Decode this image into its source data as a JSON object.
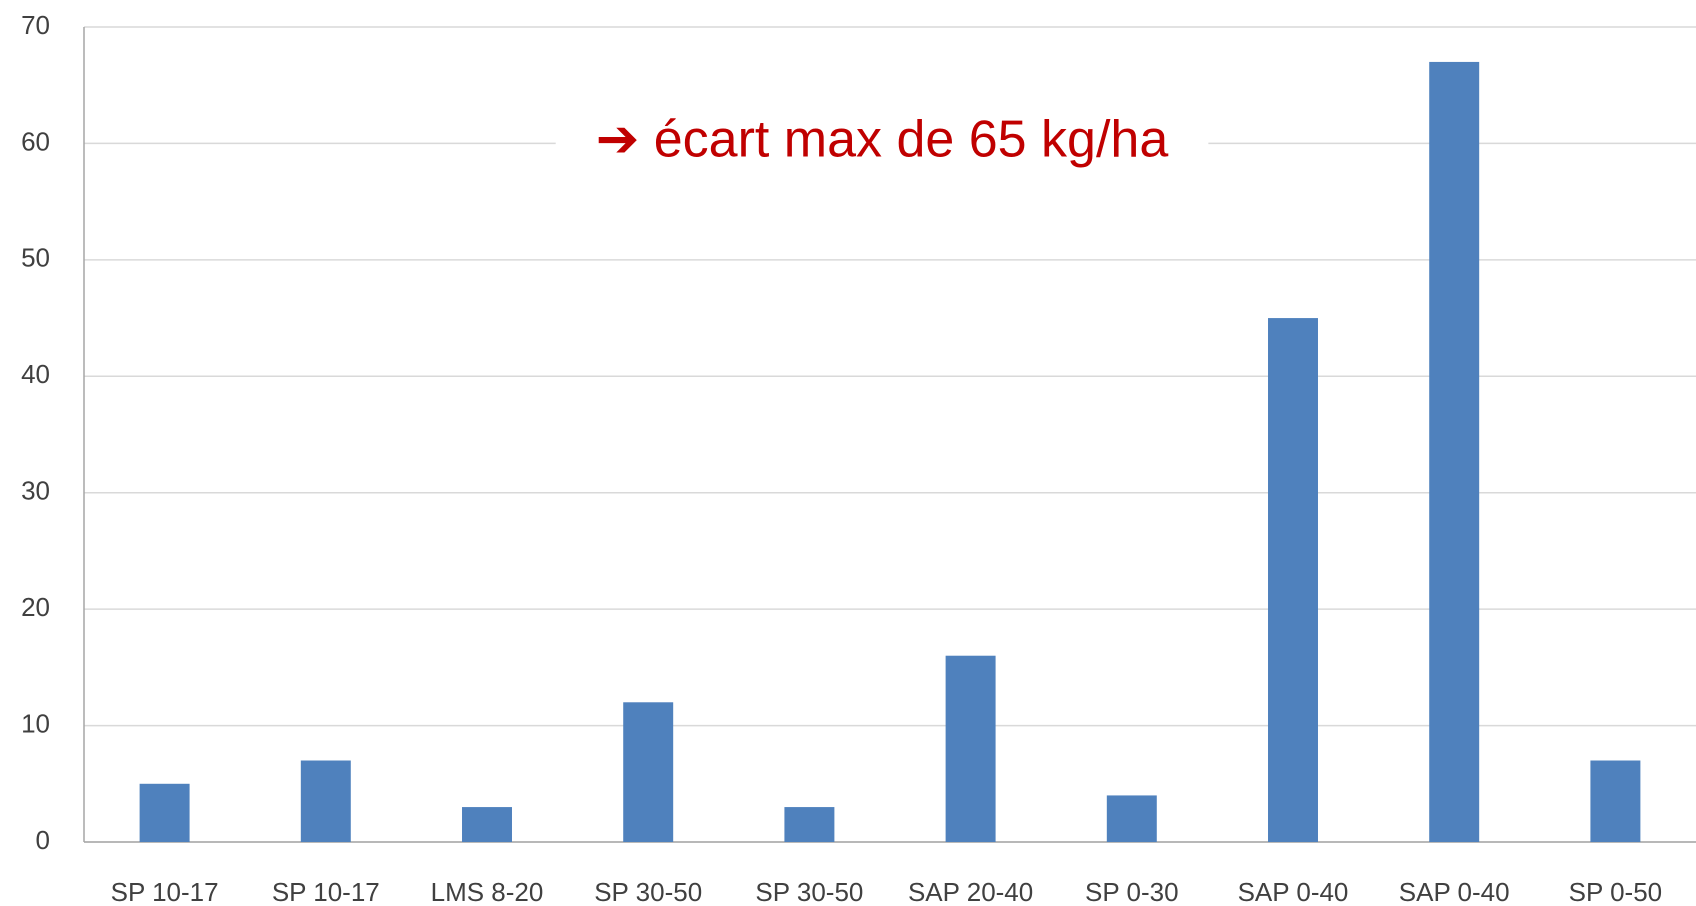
{
  "chart_data": {
    "type": "bar",
    "annotation": "➔ écart max de 65 kg/ha",
    "categories": [
      "SP 10-17",
      "SP 10-17",
      "LMS 8-20",
      "SP 30-50",
      "SP 30-50",
      "SAP 20-40",
      "SP 0-30",
      "SAP 0-40",
      "SAP 0-40",
      "SP 0-50"
    ],
    "values": [
      5,
      7,
      3,
      12,
      3,
      16,
      4,
      45,
      67,
      7
    ],
    "color": "#4f81bd",
    "ylim": [
      0,
      70
    ],
    "yticks": [
      0,
      10,
      20,
      30,
      40,
      50,
      60,
      70
    ],
    "grid": true
  }
}
